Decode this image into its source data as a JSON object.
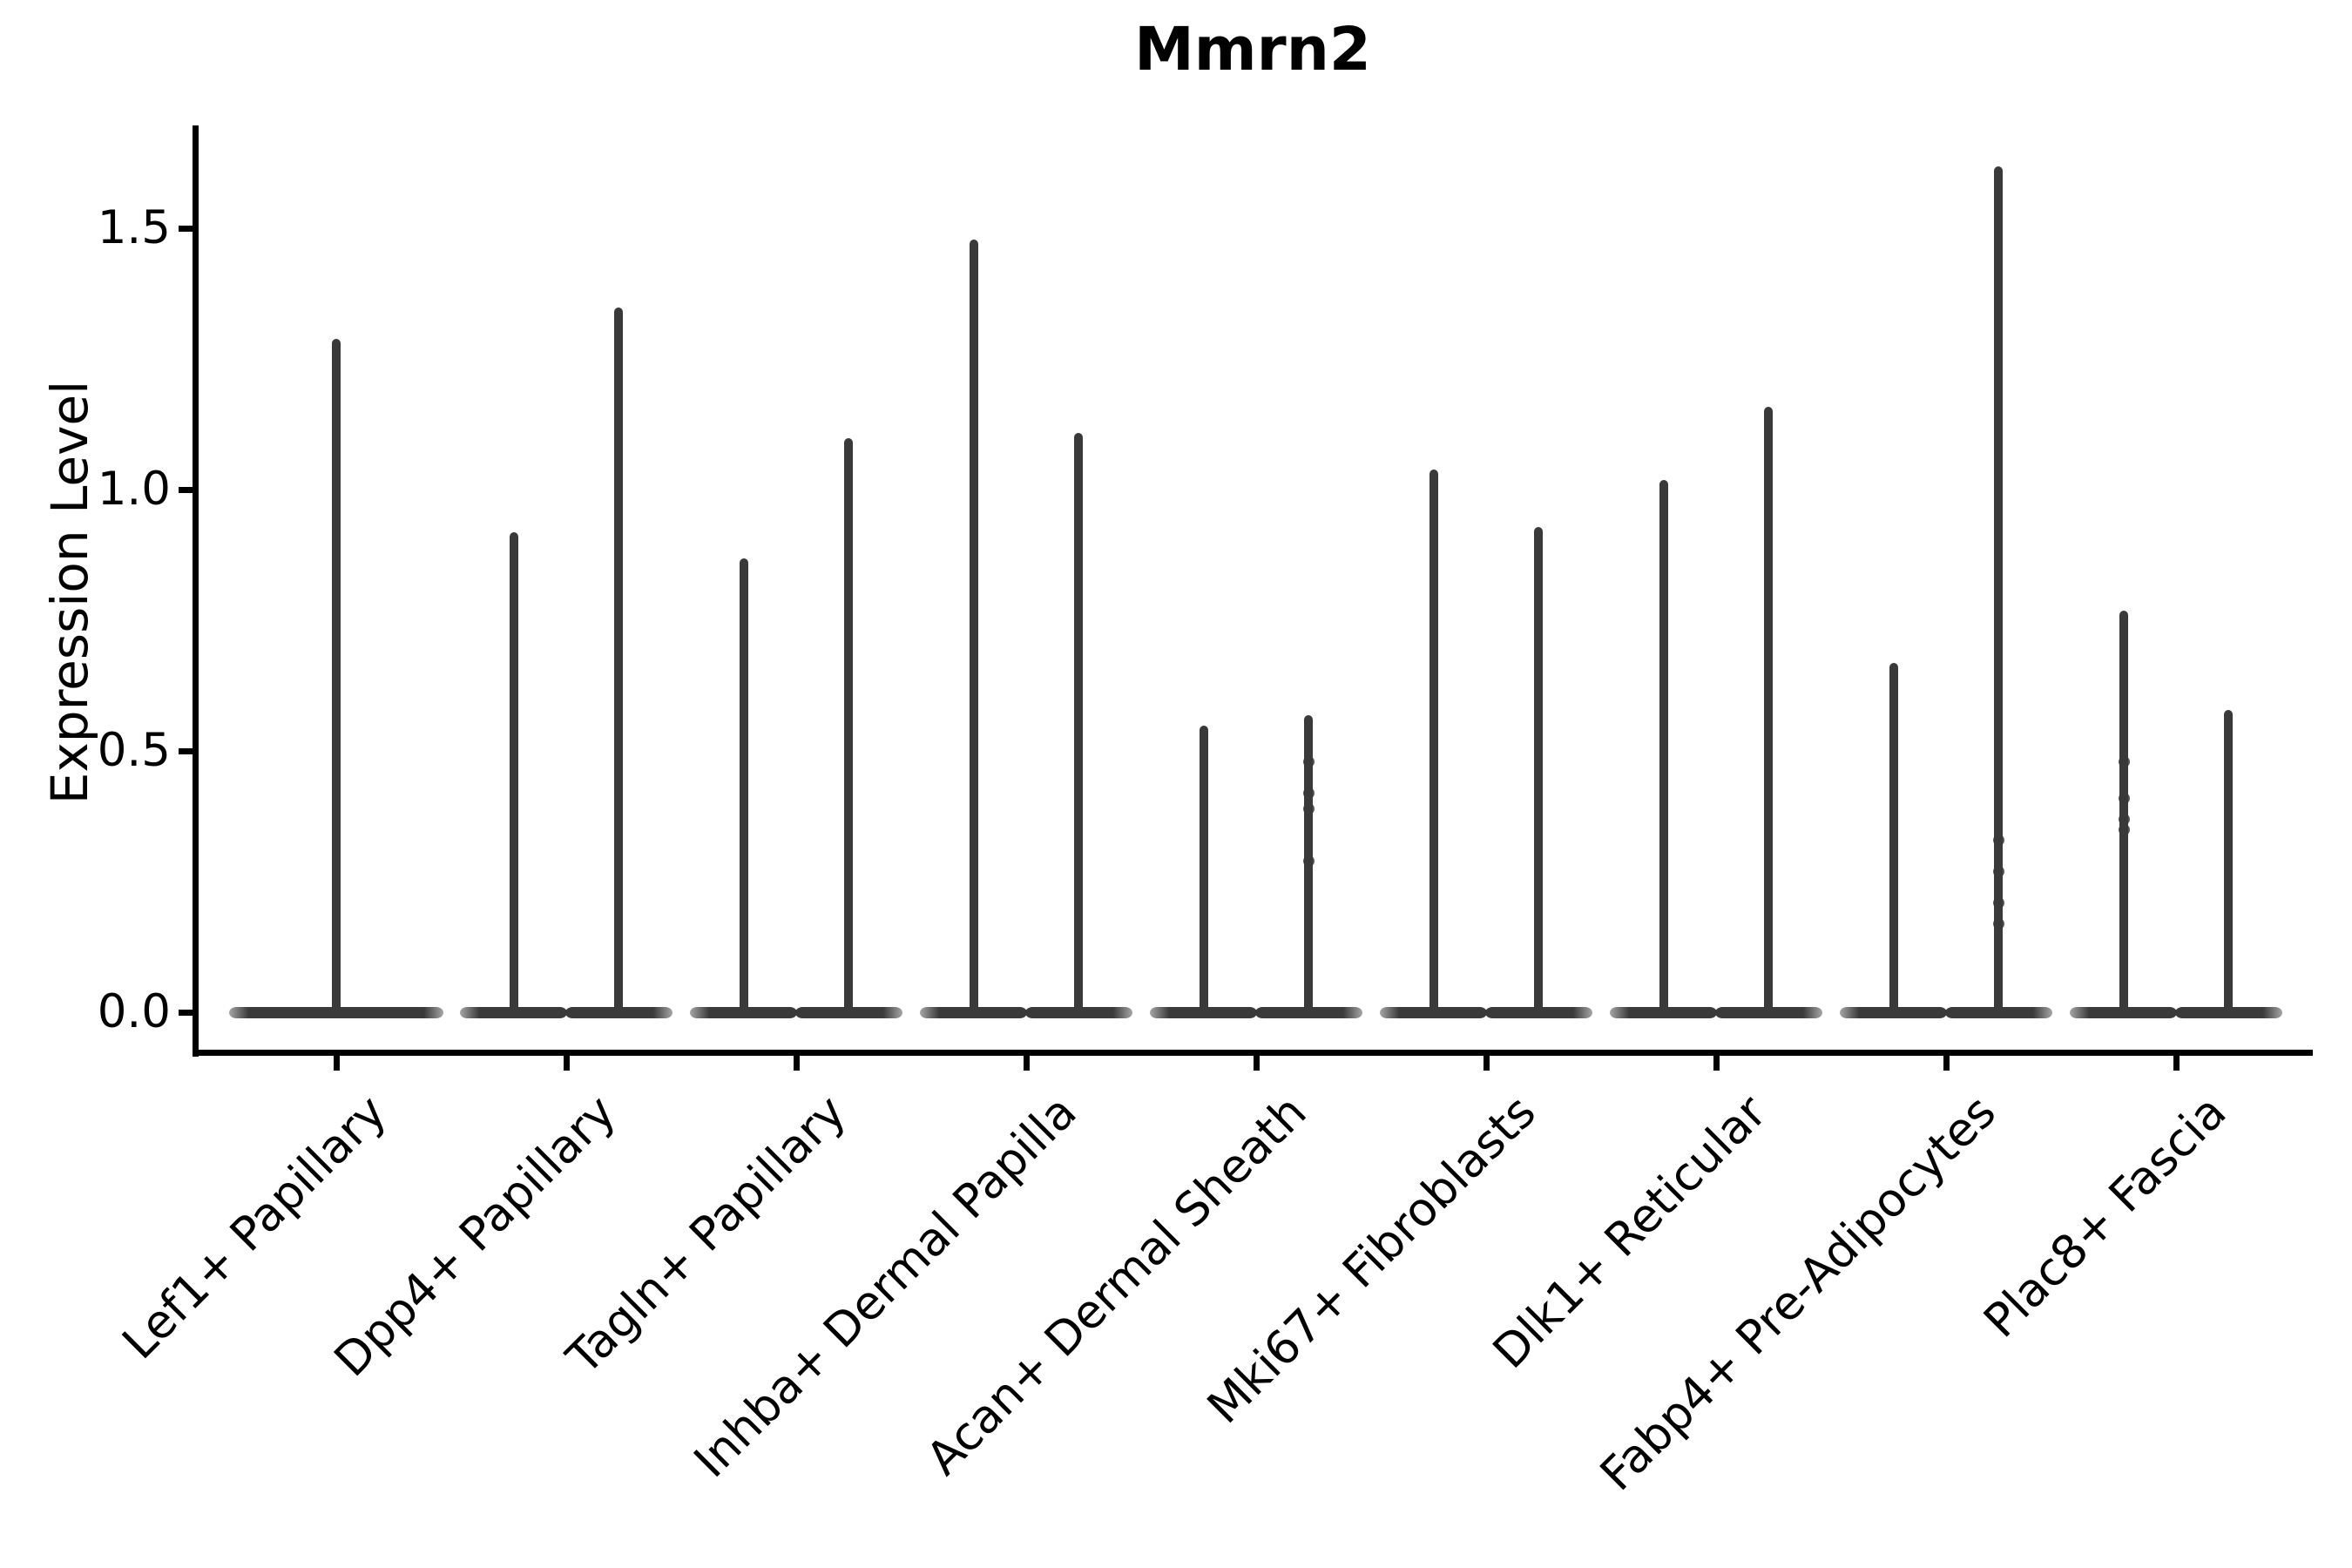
{
  "title": "Mmrn2",
  "axes": {
    "ylabel": "Expression Level",
    "ytick_labels": [
      "0.0",
      "0.5",
      "1.0",
      "1.5"
    ]
  },
  "colors": {
    "background": "#ffffff",
    "violin": "#3a3a3a",
    "axis": "#000000",
    "text": "#000000"
  },
  "chart_data": {
    "type": "violin",
    "title": "Mmrn2",
    "xlabel": "",
    "ylabel": "Expression Level",
    "ylim": [
      -0.08,
      1.7
    ],
    "yticks": [
      0.0,
      0.5,
      1.0,
      1.5
    ],
    "ytick_labels": [
      "0.0",
      "0.5",
      "1.0",
      "1.5"
    ],
    "grid": false,
    "legend": false,
    "orientation": "vertical",
    "description": "Violin plot of Mmrn2 expression; most cells at 0 giving wide flat bases with thin spikes up to each group's maximum. Each category holds two dodged group violins except the first, which has a single centered violin.",
    "categories": [
      "Lef1+ Papillary",
      "Dpp4+ Papillary",
      "Tagln+ Papillary",
      "Inhba+ Dermal Papilla",
      "Acan+ Dermal Sheath",
      "Mki67+ Fibroblasts",
      "Dlk1+ Reticular",
      "Fabp4+ Pre-Adipocytes",
      "Plac8+ Fascia"
    ],
    "violins": [
      {
        "category": "Lef1+ Papillary",
        "groups": [
          {
            "position": "center",
            "max": 1.28,
            "points": []
          }
        ]
      },
      {
        "category": "Dpp4+ Papillary",
        "groups": [
          {
            "position": "left",
            "max": 0.91,
            "points": []
          },
          {
            "position": "right",
            "max": 1.34,
            "points": []
          }
        ]
      },
      {
        "category": "Tagln+ Papillary",
        "groups": [
          {
            "position": "left",
            "max": 0.86,
            "points": []
          },
          {
            "position": "right",
            "max": 1.09,
            "points": []
          }
        ]
      },
      {
        "category": "Inhba+ Dermal Papilla",
        "groups": [
          {
            "position": "left",
            "max": 1.47,
            "points": []
          },
          {
            "position": "right",
            "max": 1.1,
            "points": []
          }
        ]
      },
      {
        "category": "Acan+ Dermal Sheath",
        "groups": [
          {
            "position": "left",
            "max": 0.54,
            "points": []
          },
          {
            "position": "right",
            "max": 0.56,
            "points": [
              0.48,
              0.42,
              0.39,
              0.29
            ]
          }
        ]
      },
      {
        "category": "Mki67+ Fibroblasts",
        "groups": [
          {
            "position": "left",
            "max": 1.03,
            "points": []
          },
          {
            "position": "right",
            "max": 0.92,
            "points": []
          }
        ]
      },
      {
        "category": "Dlk1+ Reticular",
        "groups": [
          {
            "position": "left",
            "max": 1.01,
            "points": []
          },
          {
            "position": "right",
            "max": 1.15,
            "points": []
          }
        ]
      },
      {
        "category": "Fabp4+ Pre-Adipocytes",
        "groups": [
          {
            "position": "left",
            "max": 0.66,
            "points": []
          },
          {
            "position": "right",
            "max": 1.61,
            "points": [
              0.33,
              0.27,
              0.21,
              0.17
            ]
          }
        ]
      },
      {
        "category": "Plac8+ Fascia",
        "groups": [
          {
            "position": "left",
            "max": 0.76,
            "points": [
              0.48,
              0.41,
              0.37,
              0.35
            ]
          },
          {
            "position": "right",
            "max": 0.57,
            "points": []
          }
        ]
      }
    ]
  }
}
